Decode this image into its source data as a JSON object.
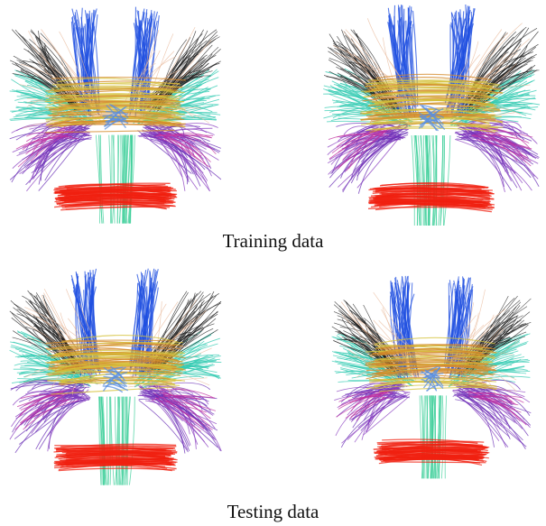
{
  "figure": {
    "captions": [
      "Training data",
      "Testing data"
    ]
  }
}
